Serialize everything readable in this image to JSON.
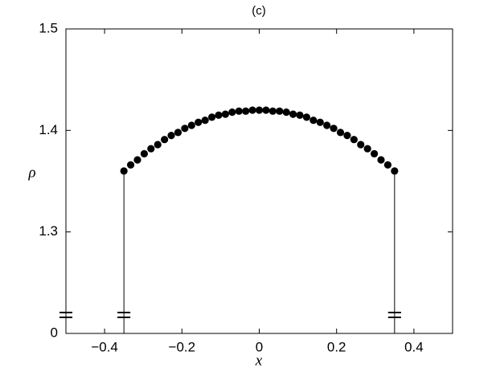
{
  "chart_data": {
    "type": "scatter",
    "title": "(c)",
    "x_label": "x",
    "y_label": "ρ",
    "xlim": [
      -0.5,
      0.5
    ],
    "xticks": [
      {
        "value": -0.4,
        "label": "−0.4"
      },
      {
        "value": -0.2,
        "label": "−0.2"
      },
      0,
      0.2,
      0.4
    ],
    "ylim": [
      0,
      1.5
    ],
    "yticks": [
      0,
      1.3,
      1.4,
      1.5
    ],
    "axis_break": true,
    "grid": false,
    "series": [
      {
        "type": "line",
        "color": "#000000",
        "x": [
          -0.35,
          -0.35
        ],
        "values": [
          0,
          1.36
        ]
      },
      {
        "type": "line",
        "color": "#000000",
        "x": [
          0.35,
          0.35
        ],
        "values": [
          0,
          1.36
        ]
      },
      {
        "type": "scatter",
        "color": "#000000",
        "x": [
          -0.35,
          -0.3325,
          -0.315,
          -0.2975,
          -0.28,
          -0.2625,
          -0.245,
          -0.2275,
          -0.21,
          -0.1925,
          -0.175,
          -0.1575,
          -0.14,
          -0.1225,
          -0.105,
          -0.0875,
          -0.07,
          -0.0525,
          -0.035,
          -0.0175,
          0,
          0.0175,
          0.035,
          0.0525,
          0.07,
          0.0875,
          0.105,
          0.1225,
          0.14,
          0.1575,
          0.175,
          0.1925,
          0.21,
          0.2275,
          0.245,
          0.2625,
          0.28,
          0.2975,
          0.315,
          0.3325,
          0.35
        ],
        "values": [
          1.36,
          1.366,
          1.371,
          1.377,
          1.382,
          1.386,
          1.391,
          1.395,
          1.398,
          1.402,
          1.405,
          1.408,
          1.41,
          1.413,
          1.415,
          1.416,
          1.418,
          1.419,
          1.419,
          1.42,
          1.42,
          1.42,
          1.419,
          1.419,
          1.418,
          1.416,
          1.415,
          1.413,
          1.41,
          1.408,
          1.405,
          1.402,
          1.398,
          1.395,
          1.391,
          1.386,
          1.382,
          1.377,
          1.371,
          1.366,
          1.36
        ]
      }
    ]
  }
}
